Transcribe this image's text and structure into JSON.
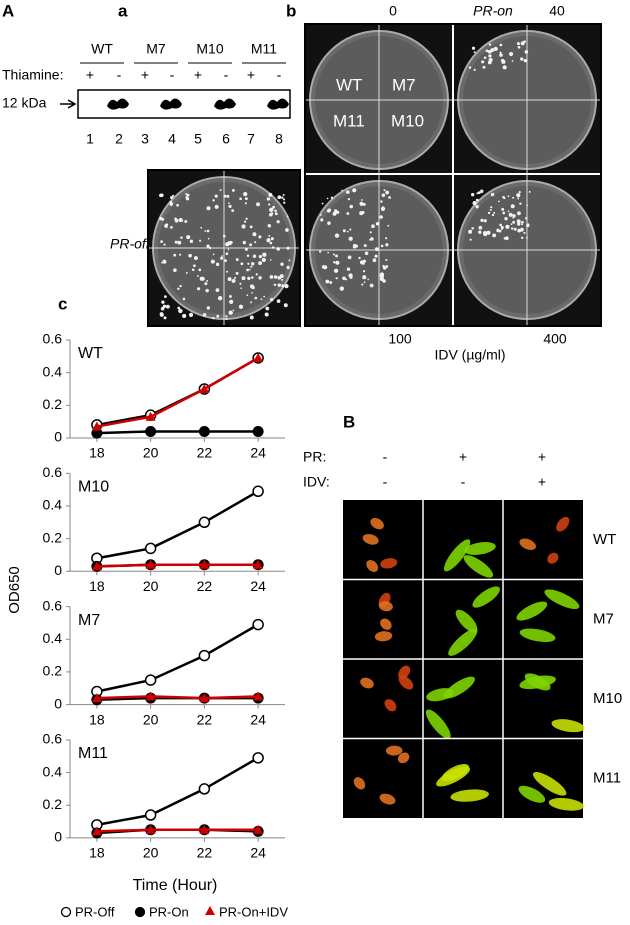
{
  "panel_labels": {
    "A": "A",
    "a": "a",
    "b": "b",
    "c": "c",
    "B": "B"
  },
  "western": {
    "strains": [
      "WT",
      "M7",
      "M10",
      "M11"
    ],
    "thiamine_label": "Thiamine:",
    "signs": [
      "+",
      "-",
      "+",
      "-",
      "+",
      "-",
      "+",
      "-"
    ],
    "size_label": "12 kDa",
    "lanes": [
      "1",
      "2",
      "3",
      "4",
      "5",
      "6",
      "7",
      "8"
    ]
  },
  "plates": {
    "top_left": "0",
    "pr_on": "PR-on",
    "top_right": "40",
    "bottom_left": "100",
    "bottom_right": "400",
    "idv_label": "IDV (µg/ml)",
    "pr_off": "PR-off",
    "quadrants": [
      "WT",
      "M7",
      "M11",
      "M10"
    ]
  },
  "growth_axes": {
    "y_label": "OD650",
    "x_label": "Time (Hour)"
  },
  "chart_data": [
    {
      "type": "line",
      "title": "WT",
      "x": [
        18,
        20,
        22,
        24
      ],
      "xlim": [
        17,
        25
      ],
      "xticks": [
        18,
        20,
        22,
        24
      ],
      "ylim": [
        0,
        0.6
      ],
      "yticks": [
        0,
        0.2,
        0.4,
        0.6
      ],
      "series": [
        {
          "name": "PR-Off",
          "color": "#000000",
          "marker": "open-circle",
          "values": [
            0.08,
            0.14,
            0.3,
            0.49
          ]
        },
        {
          "name": "PR-On",
          "color": "#000000",
          "marker": "circle",
          "values": [
            0.03,
            0.04,
            0.04,
            0.04
          ]
        },
        {
          "name": "PR-On+IDV",
          "color": "#cc0000",
          "marker": "triangle",
          "values": [
            0.07,
            0.13,
            0.3,
            0.49
          ]
        }
      ]
    },
    {
      "type": "line",
      "title": "M10",
      "x": [
        18,
        20,
        22,
        24
      ],
      "xlim": [
        17,
        25
      ],
      "xticks": [
        18,
        20,
        22,
        24
      ],
      "ylim": [
        0,
        0.6
      ],
      "yticks": [
        0,
        0.2,
        0.4,
        0.6
      ],
      "series": [
        {
          "name": "PR-Off",
          "color": "#000000",
          "marker": "open-circle",
          "values": [
            0.08,
            0.14,
            0.3,
            0.49
          ]
        },
        {
          "name": "PR-On",
          "color": "#000000",
          "marker": "circle",
          "values": [
            0.03,
            0.04,
            0.04,
            0.04
          ]
        },
        {
          "name": "PR-On+IDV",
          "color": "#cc0000",
          "marker": "triangle",
          "values": [
            0.03,
            0.04,
            0.04,
            0.04
          ]
        }
      ]
    },
    {
      "type": "line",
      "title": "M7",
      "x": [
        18,
        20,
        22,
        24
      ],
      "xlim": [
        17,
        25
      ],
      "xticks": [
        18,
        20,
        22,
        24
      ],
      "ylim": [
        0,
        0.6
      ],
      "yticks": [
        0,
        0.2,
        0.4,
        0.6
      ],
      "series": [
        {
          "name": "PR-Off",
          "color": "#000000",
          "marker": "open-circle",
          "values": [
            0.08,
            0.15,
            0.3,
            0.49
          ]
        },
        {
          "name": "PR-On",
          "color": "#000000",
          "marker": "circle",
          "values": [
            0.03,
            0.04,
            0.04,
            0.04
          ]
        },
        {
          "name": "PR-On+IDV",
          "color": "#cc0000",
          "marker": "triangle",
          "values": [
            0.04,
            0.05,
            0.04,
            0.05
          ]
        }
      ]
    },
    {
      "type": "line",
      "title": "M11",
      "x": [
        18,
        20,
        22,
        24
      ],
      "xlim": [
        17,
        25
      ],
      "xticks": [
        18,
        20,
        22,
        24
      ],
      "ylim": [
        0,
        0.6
      ],
      "yticks": [
        0,
        0.2,
        0.4,
        0.6
      ],
      "series": [
        {
          "name": "PR-Off",
          "color": "#000000",
          "marker": "open-circle",
          "values": [
            0.08,
            0.14,
            0.3,
            0.49
          ]
        },
        {
          "name": "PR-On",
          "color": "#000000",
          "marker": "circle",
          "values": [
            0.03,
            0.05,
            0.05,
            0.04
          ]
        },
        {
          "name": "PR-On+IDV",
          "color": "#cc0000",
          "marker": "triangle",
          "values": [
            0.04,
            0.05,
            0.05,
            0.05
          ]
        }
      ]
    }
  ],
  "microscopy": {
    "pr_label": "PR:",
    "idv_label": "IDV:",
    "pr_signs": [
      "-",
      "+",
      "+"
    ],
    "idv_signs": [
      "-",
      "-",
      "+"
    ],
    "rows": [
      "WT",
      "M7",
      "M10",
      "M11"
    ]
  }
}
